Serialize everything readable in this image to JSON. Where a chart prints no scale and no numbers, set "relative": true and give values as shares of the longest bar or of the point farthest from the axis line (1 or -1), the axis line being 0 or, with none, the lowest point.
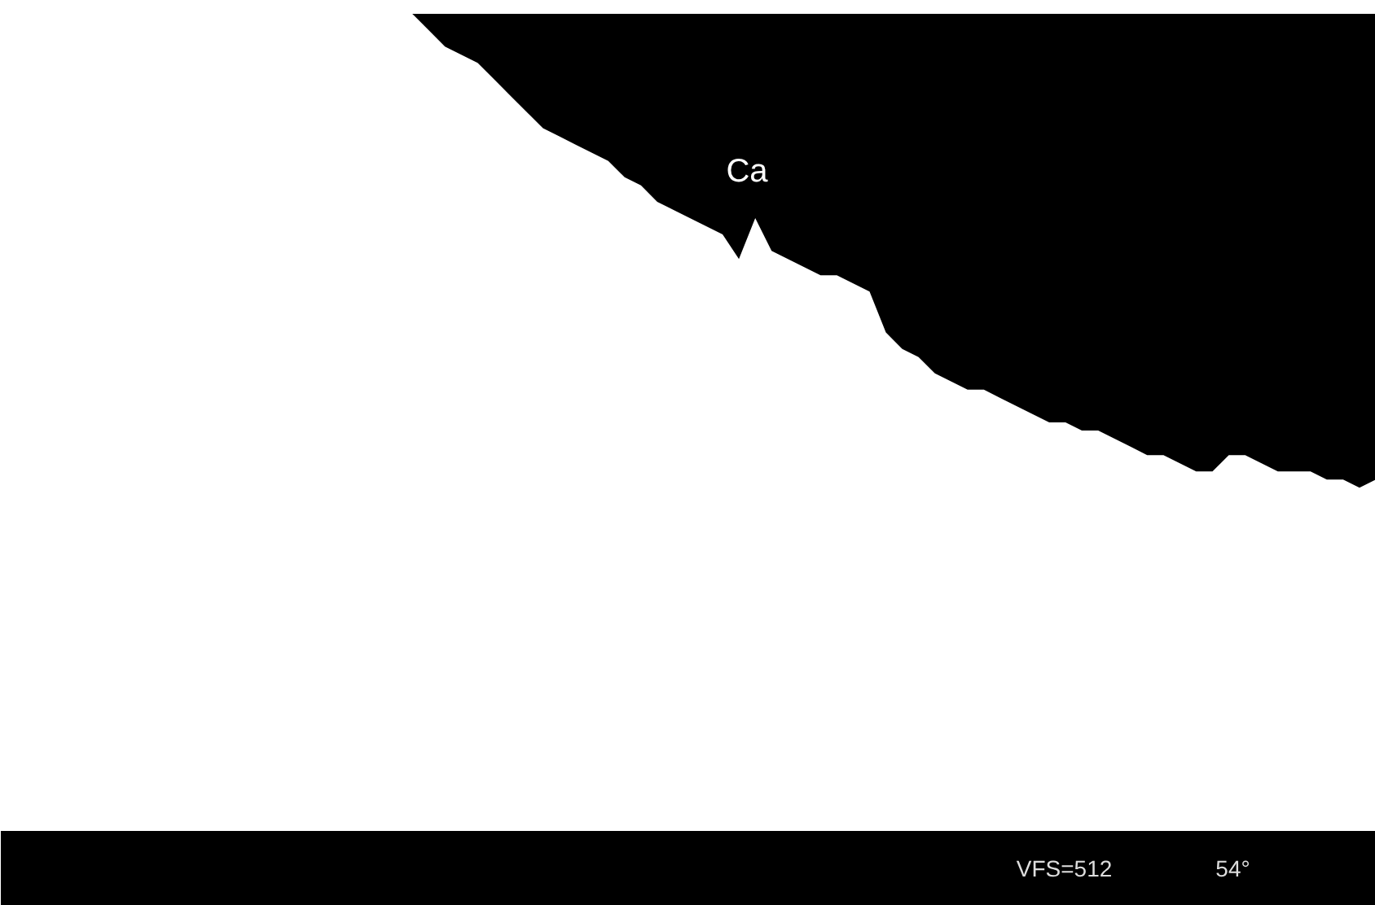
{
  "chart_data": {
    "type": "area",
    "relative": true,
    "tick_labels": false,
    "grid": false,
    "categories": [
      null,
      null,
      null,
      null,
      null,
      null,
      null,
      null,
      null,
      null,
      null,
      null,
      null,
      null,
      null,
      null,
      null,
      null,
      null,
      null,
      null,
      null,
      null,
      null,
      null,
      null,
      null,
      null,
      null,
      null,
      null,
      null,
      null,
      null,
      null,
      null,
      null,
      null,
      null,
      null,
      null,
      null,
      null,
      null,
      null,
      null,
      null,
      null,
      null,
      null,
      null,
      null,
      null,
      null,
      null,
      null,
      null,
      null,
      null,
      null,
      null,
      null,
      null,
      null,
      null,
      null,
      null,
      null,
      null,
      null,
      null,
      null,
      null,
      null,
      null,
      null,
      null,
      null,
      null,
      null,
      null,
      null,
      null,
      null
    ],
    "series": [
      {
        "color": "#ffffff",
        "values": [
          1,
          1,
          1,
          1,
          1,
          1,
          1,
          1,
          1,
          1,
          1,
          1,
          1,
          1,
          1,
          1,
          1,
          1,
          1,
          1,
          1,
          1,
          1,
          1,
          1,
          0.98,
          0.96,
          0.95,
          0.94,
          0.92,
          0.9,
          0.88,
          0.86,
          0.85,
          0.84,
          0.83,
          0.82,
          0.8,
          0.79,
          0.77,
          0.76,
          0.75,
          0.74,
          0.73,
          0.7,
          0.75,
          0.71,
          0.7,
          0.69,
          0.68,
          0.68,
          0.67,
          0.66,
          0.61,
          0.59,
          0.58,
          0.56,
          0.55,
          0.54,
          0.54,
          0.53,
          0.52,
          0.51,
          0.5,
          0.5,
          0.49,
          0.49,
          0.48,
          0.47,
          0.46,
          0.46,
          0.45,
          0.44,
          0.44,
          0.46,
          0.46,
          0.45,
          0.44,
          0.44,
          0.44,
          0.43,
          0.43,
          0.42,
          0.43
        ]
      }
    ],
    "annotations": [
      "Ca",
      "VFS=512",
      "54°"
    ]
  }
}
